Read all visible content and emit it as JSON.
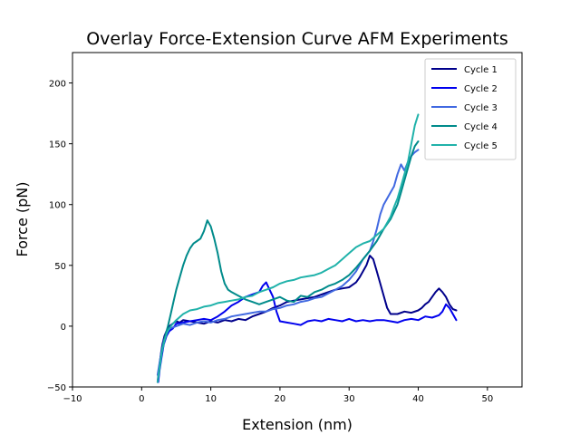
{
  "chart_data": {
    "type": "line",
    "title": "Overlay Force-Extension Curve AFM Experiments",
    "xlabel": "Extension (nm)",
    "ylabel": "Force (pN)",
    "xlim": [
      -10,
      55
    ],
    "ylim": [
      -50,
      225
    ],
    "xticks": [
      -10,
      0,
      10,
      20,
      30,
      40,
      50
    ],
    "yticks": [
      -50,
      0,
      50,
      100,
      150,
      200
    ],
    "grid": false,
    "legend_position": "top-right",
    "series": [
      {
        "name": "Cycle 1",
        "color": "#00008b",
        "x": [
          2.3,
          2.5,
          2.8,
          3.0,
          3.3,
          3.6,
          4.0,
          4.5,
          5.0,
          5.5,
          6.0,
          7.0,
          8.0,
          9.0,
          10.0,
          11.0,
          12.0,
          13.0,
          14.0,
          15.0,
          16.0,
          17.0,
          18.0,
          19.0,
          20.0,
          21.0,
          22.0,
          23.0,
          24.0,
          25.0,
          26.0,
          27.0,
          28.0,
          29.0,
          30.0,
          30.5,
          31.0,
          31.5,
          32.0,
          32.5,
          33.0,
          33.5,
          34.0,
          34.5,
          35.0,
          35.5,
          36.0,
          37.0,
          38.0,
          39.0,
          40.0,
          40.5,
          41.0,
          41.5,
          42.0,
          42.5,
          43.0,
          43.5,
          44.0,
          44.5,
          45.0,
          45.5
        ],
        "y": [
          -46,
          -35,
          -22,
          -15,
          -8,
          -4,
          0,
          2,
          4,
          3,
          5,
          4,
          3,
          2,
          4,
          3,
          5,
          4,
          6,
          5,
          8,
          10,
          12,
          15,
          17,
          20,
          21,
          22,
          23,
          24,
          26,
          28,
          30,
          31,
          32,
          34,
          36,
          40,
          45,
          50,
          58,
          55,
          45,
          35,
          25,
          15,
          10,
          10,
          12,
          11,
          13,
          15,
          18,
          20,
          24,
          28,
          31,
          28,
          24,
          18,
          14,
          13
        ]
      },
      {
        "name": "Cycle 2",
        "color": "#0000ee",
        "x": [
          2.4,
          2.6,
          2.9,
          3.2,
          3.6,
          4.0,
          4.5,
          5.0,
          6.0,
          7.0,
          8.0,
          9.0,
          10.0,
          11.0,
          12.0,
          13.0,
          14.0,
          15.0,
          16.0,
          17.0,
          17.5,
          18.0,
          18.5,
          19.0,
          19.5,
          20.0,
          21.0,
          22.0,
          23.0,
          24.0,
          25.0,
          26.0,
          27.0,
          28.0,
          29.0,
          30.0,
          31.0,
          32.0,
          33.0,
          34.0,
          35.0,
          36.0,
          37.0,
          38.0,
          39.0,
          40.0,
          41.0,
          42.0,
          43.0,
          43.5,
          44.0,
          44.5,
          45.0,
          45.5
        ],
        "y": [
          -46,
          -36,
          -25,
          -15,
          -8,
          -4,
          -2,
          2,
          3,
          4,
          5,
          6,
          5,
          8,
          12,
          17,
          20,
          24,
          26,
          28,
          33,
          36,
          30,
          24,
          12,
          4,
          3,
          2,
          1,
          4,
          5,
          4,
          6,
          5,
          4,
          6,
          4,
          5,
          4,
          5,
          5,
          4,
          3,
          5,
          6,
          5,
          8,
          7,
          9,
          12,
          18,
          15,
          10,
          5
        ]
      },
      {
        "name": "Cycle 3",
        "color": "#4169e1",
        "x": [
          2.3,
          2.6,
          2.9,
          3.2,
          3.6,
          4.0,
          5.0,
          6.0,
          7.0,
          8.0,
          9.0,
          10.0,
          11.0,
          12.0,
          13.0,
          14.0,
          15.0,
          16.0,
          17.0,
          18.0,
          19.0,
          20.0,
          21.0,
          22.0,
          23.0,
          24.0,
          25.0,
          26.0,
          27.0,
          28.0,
          29.0,
          30.0,
          31.0,
          32.0,
          33.0,
          33.5,
          34.0,
          34.5,
          35.0,
          35.5,
          36.0,
          36.5,
          37.0,
          37.5,
          38.0,
          38.5,
          39.0,
          39.5,
          40.0
        ],
        "y": [
          -40,
          -30,
          -20,
          -12,
          -6,
          -2,
          0,
          2,
          1,
          3,
          4,
          3,
          5,
          6,
          8,
          9,
          10,
          11,
          12,
          12,
          14,
          15,
          17,
          18,
          20,
          21,
          23,
          24,
          27,
          30,
          33,
          38,
          45,
          55,
          62,
          70,
          80,
          92,
          100,
          105,
          110,
          115,
          125,
          133,
          128,
          135,
          140,
          143,
          145
        ]
      },
      {
        "name": "Cycle 4",
        "color": "#008b8b",
        "x": [
          2.4,
          2.7,
          3.0,
          3.4,
          3.8,
          4.2,
          4.6,
          5.0,
          5.5,
          6.0,
          6.5,
          7.0,
          7.5,
          8.0,
          8.5,
          9.0,
          9.5,
          10.0,
          10.5,
          11.0,
          11.5,
          12.0,
          12.5,
          13.0,
          14.0,
          15.0,
          16.0,
          17.0,
          18.0,
          19.0,
          20.0,
          21.0,
          22.0,
          23.0,
          24.0,
          25.0,
          26.0,
          27.0,
          28.0,
          29.0,
          30.0,
          31.0,
          32.0,
          33.0,
          34.0,
          35.0,
          36.0,
          37.0,
          37.5,
          38.0,
          38.5,
          39.0,
          39.5,
          40.0
        ],
        "y": [
          -42,
          -30,
          -18,
          -8,
          0,
          10,
          20,
          30,
          40,
          50,
          58,
          64,
          68,
          70,
          72,
          78,
          87,
          82,
          72,
          60,
          45,
          35,
          30,
          28,
          25,
          22,
          20,
          18,
          20,
          22,
          24,
          21,
          20,
          25,
          24,
          28,
          30,
          33,
          35,
          38,
          42,
          48,
          55,
          62,
          70,
          80,
          88,
          100,
          110,
          120,
          130,
          140,
          148,
          152
        ]
      },
      {
        "name": "Cycle 5",
        "color": "#20b2aa",
        "x": [
          2.3,
          2.6,
          2.9,
          3.3,
          3.7,
          4.2,
          5.0,
          6.0,
          7.0,
          8.0,
          9.0,
          10.0,
          11.0,
          12.0,
          13.0,
          14.0,
          15.0,
          16.0,
          17.0,
          18.0,
          19.0,
          20.0,
          21.0,
          22.0,
          23.0,
          24.0,
          25.0,
          26.0,
          27.0,
          28.0,
          29.0,
          30.0,
          31.0,
          32.0,
          33.0,
          34.0,
          35.0,
          35.5,
          36.0,
          36.5,
          37.0,
          37.5,
          38.0,
          38.5,
          39.0,
          39.5,
          40.0
        ],
        "y": [
          -46,
          -34,
          -22,
          -12,
          -5,
          0,
          5,
          10,
          13,
          14,
          16,
          17,
          19,
          20,
          21,
          22,
          24,
          25,
          28,
          30,
          32,
          35,
          37,
          38,
          40,
          41,
          42,
          44,
          47,
          50,
          55,
          60,
          65,
          68,
          70,
          75,
          80,
          85,
          90,
          98,
          105,
          115,
          125,
          135,
          150,
          165,
          174
        ]
      }
    ]
  }
}
